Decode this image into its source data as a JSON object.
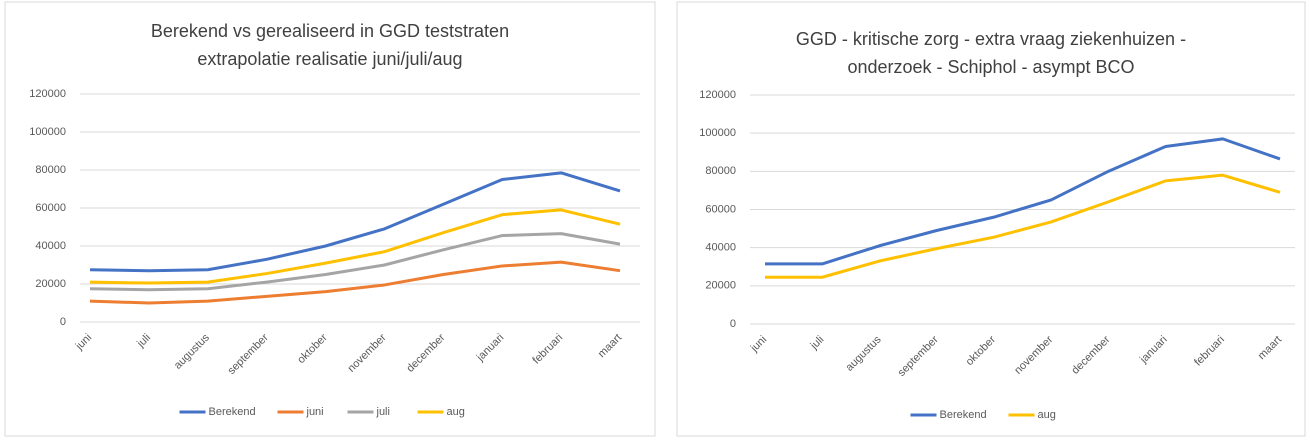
{
  "chart_data": [
    {
      "type": "line",
      "title": [
        "Berekend vs gerealiseerd in GGD teststraten",
        "extrapolatie realisatie juni/juli/aug"
      ],
      "categories": [
        "juni",
        "juli",
        "augustus",
        "september",
        "oktober",
        "november",
        "december",
        "januari",
        "februari",
        "maart"
      ],
      "series": [
        {
          "name": "Berekend",
          "color": "#4472c4",
          "values": [
            27500,
            27000,
            27500,
            33000,
            40000,
            49000,
            62000,
            75000,
            78500,
            69000
          ]
        },
        {
          "name": "juni",
          "color": "#ed7d31",
          "values": [
            11000,
            10000,
            11000,
            13500,
            16000,
            19500,
            25000,
            29500,
            31500,
            27000
          ]
        },
        {
          "name": "juli",
          "color": "#a5a5a5",
          "values": [
            17500,
            17000,
            17500,
            21000,
            25000,
            30000,
            38000,
            45500,
            46500,
            41000
          ]
        },
        {
          "name": "aug",
          "color": "#ffc000",
          "values": [
            21000,
            20500,
            21000,
            25500,
            31000,
            37000,
            47000,
            56500,
            59000,
            51500
          ]
        }
      ],
      "ylim": [
        0,
        120000
      ],
      "yticks": [
        0,
        20000,
        40000,
        60000,
        80000,
        100000,
        120000
      ],
      "grid": true,
      "legend": "bottom"
    },
    {
      "type": "line",
      "title": [
        "GGD - kritische zorg - extra vraag ziekenhuizen -",
        "onderzoek - Schiphol - asympt BCO"
      ],
      "categories": [
        "juni",
        "juli",
        "augustus",
        "september",
        "oktober",
        "november",
        "december",
        "januari",
        "februari",
        "maart"
      ],
      "series": [
        {
          "name": "Berekend",
          "color": "#4472c4",
          "values": [
            31500,
            31500,
            41000,
            49000,
            56000,
            65000,
            80000,
            93000,
            97000,
            86500
          ]
        },
        {
          "name": "aug",
          "color": "#ffc000",
          "values": [
            24500,
            24500,
            33000,
            39500,
            45500,
            53500,
            64000,
            75000,
            78000,
            69000
          ]
        }
      ],
      "ylim": [
        0,
        120000
      ],
      "yticks": [
        0,
        20000,
        40000,
        60000,
        80000,
        100000,
        120000
      ],
      "grid": true,
      "legend": "bottom"
    }
  ]
}
